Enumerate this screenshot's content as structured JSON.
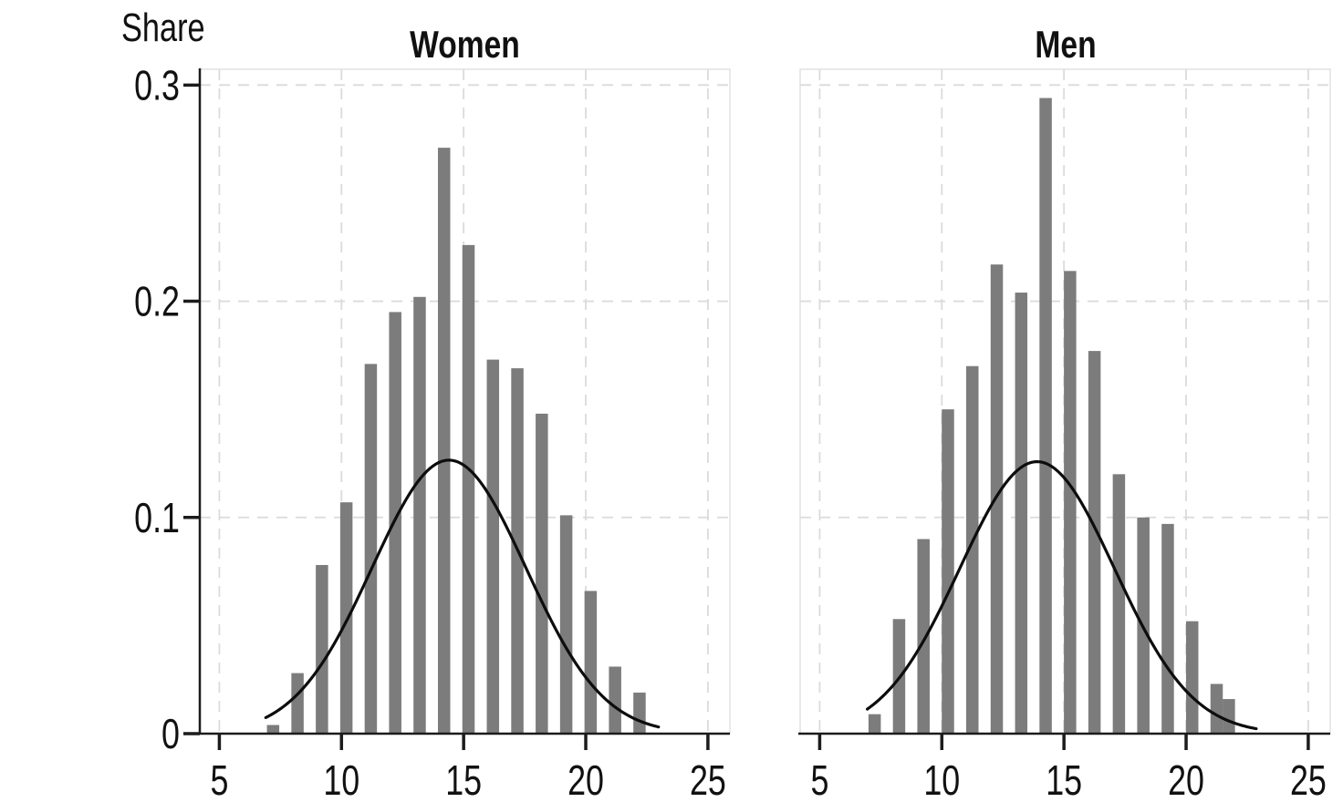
{
  "figure": {
    "background": "#ffffff"
  },
  "y_axis": {
    "label": "Share",
    "tick_labels": [
      "0",
      "0.1",
      "0.2",
      "0.3"
    ],
    "tick_values": [
      0,
      0.1,
      0.2,
      0.3
    ]
  },
  "x_axis": {
    "tick_labels": [
      "5",
      "10",
      "15",
      "20",
      "25"
    ],
    "tick_values": [
      5,
      10,
      15,
      20,
      25
    ]
  },
  "colors": {
    "bar": "#7c7c7c",
    "curve": "#0d0d0d",
    "axis": "#1c1c1c",
    "grid": "#dbdbdb",
    "panel_border": "#e2e2e2",
    "text": "#111111"
  },
  "chart_data": [
    {
      "type": "bar",
      "title": "Women",
      "ylabel": "Share",
      "xlabel": "",
      "xlim": [
        4.2,
        25.9
      ],
      "ylim": [
        0,
        0.3073
      ],
      "grid": "dashed gridlines at x ticks 5-25 and y ticks 0.1-0.3",
      "legend": "none",
      "x": [
        7.2,
        8.2,
        9.2,
        10.2,
        11.2,
        12.2,
        13.2,
        14.2,
        15.2,
        16.2,
        17.2,
        18.2,
        19.2,
        20.2,
        21.2,
        22.2
      ],
      "values": [
        0.004,
        0.028,
        0.078,
        0.107,
        0.171,
        0.195,
        0.202,
        0.271,
        0.226,
        0.173,
        0.169,
        0.148,
        0.101,
        0.066,
        0.031,
        0.019
      ],
      "curve": {
        "shape": "normal-density",
        "mean": 14.4,
        "sd": 3.15,
        "peak": 0.1265,
        "x_start": 6.9,
        "x_end": 23.0
      }
    },
    {
      "type": "bar",
      "title": "Men",
      "ylabel": "Share",
      "xlabel": "",
      "xlim": [
        4.2,
        25.9
      ],
      "ylim": [
        0,
        0.3073
      ],
      "grid": "dashed gridlines at x ticks 5-25 and y ticks 0.1-0.3",
      "legend": "none",
      "x": [
        7.25,
        8.25,
        9.25,
        10.25,
        11.25,
        12.25,
        13.25,
        14.25,
        15.25,
        16.25,
        17.25,
        18.25,
        19.25,
        20.25,
        21.25,
        21.75
      ],
      "values": [
        0.009,
        0.053,
        0.09,
        0.15,
        0.17,
        0.217,
        0.204,
        0.294,
        0.214,
        0.177,
        0.12,
        0.1,
        0.097,
        0.052,
        0.023,
        0.016
      ],
      "curve": {
        "shape": "normal-density",
        "mean": 13.9,
        "sd": 3.17,
        "peak": 0.1258,
        "x_start": 6.95,
        "x_end": 22.9
      }
    }
  ]
}
